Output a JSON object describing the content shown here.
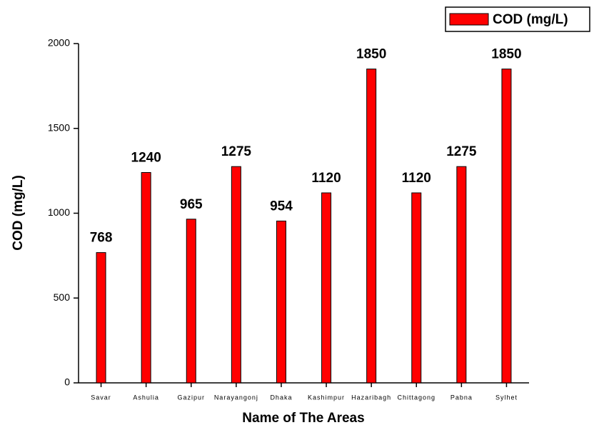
{
  "chart_data": {
    "type": "bar",
    "x_label": "Name of The Areas",
    "y_label": "COD (mg/L)",
    "categories": [
      "Savar",
      "Ashulia",
      "Gazipur",
      "Narayangonj",
      "Dhaka",
      "Kashimpur",
      "Hazaribagh",
      "Chittagong",
      "Pabna",
      "Sylhet"
    ],
    "series": [
      {
        "name": "COD (mg/L)",
        "color": "#ff0000",
        "values": [
          768,
          1240,
          965,
          1275,
          954,
          1120,
          1850,
          1120,
          1275,
          1850
        ]
      }
    ],
    "ylim": [
      0,
      2000
    ],
    "yticks": [
      0,
      500,
      1000,
      1500,
      2000
    ],
    "legend": "top-right",
    "grid": false
  }
}
